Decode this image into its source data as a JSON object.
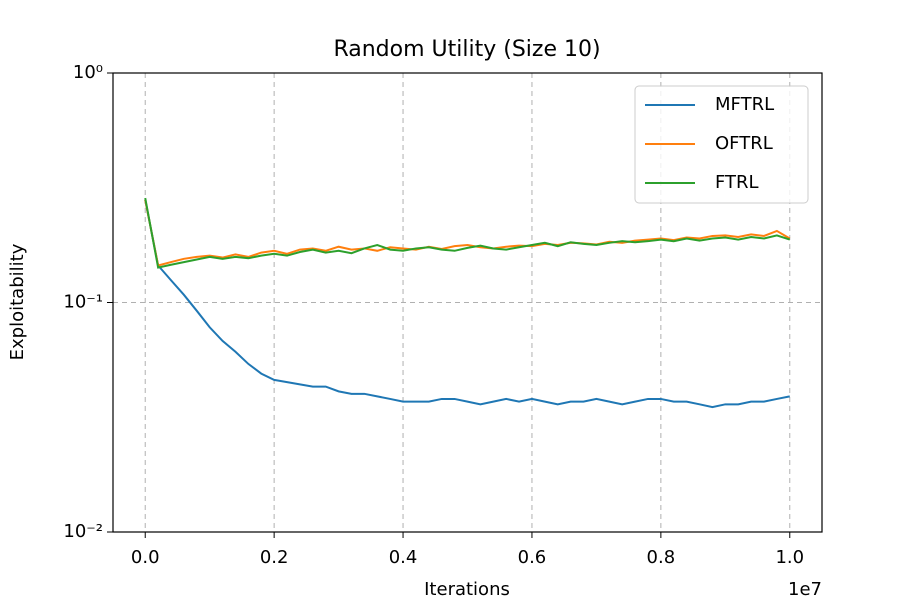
{
  "chart_data": {
    "type": "line",
    "title": "Random Utility (Size 10)",
    "x_label": "Iterations",
    "y_label": "Exploitability",
    "x_offset_label": "1e7",
    "x": [
      0,
      0.02,
      0.04,
      0.06,
      0.08,
      0.1,
      0.12,
      0.14,
      0.16,
      0.18,
      0.2,
      0.22,
      0.24,
      0.26,
      0.28,
      0.3,
      0.32,
      0.34,
      0.36,
      0.38,
      0.4,
      0.42,
      0.44,
      0.46,
      0.48,
      0.5,
      0.52,
      0.54,
      0.56,
      0.58,
      0.6,
      0.62,
      0.64,
      0.66,
      0.68,
      0.7,
      0.72,
      0.74,
      0.76,
      0.78,
      0.8,
      0.82,
      0.84,
      0.86,
      0.88,
      0.9,
      0.92,
      0.94,
      0.96,
      0.98,
      1.0
    ],
    "series": [
      {
        "name": "MFTRL",
        "color": "#1f77b4",
        "values": [
          0.28,
          0.145,
          0.125,
          0.108,
          0.092,
          0.078,
          0.068,
          0.061,
          0.054,
          0.049,
          0.046,
          0.045,
          0.044,
          0.043,
          0.043,
          0.041,
          0.04,
          0.04,
          0.039,
          0.038,
          0.037,
          0.037,
          0.037,
          0.038,
          0.038,
          0.037,
          0.036,
          0.037,
          0.038,
          0.037,
          0.038,
          0.037,
          0.036,
          0.037,
          0.037,
          0.038,
          0.037,
          0.036,
          0.037,
          0.038,
          0.038,
          0.037,
          0.037,
          0.036,
          0.035,
          0.036,
          0.036,
          0.037,
          0.037,
          0.038,
          0.039
        ]
      },
      {
        "name": "OFTRL",
        "color": "#ff7f0e",
        "values": [
          0.28,
          0.145,
          0.15,
          0.155,
          0.158,
          0.16,
          0.157,
          0.162,
          0.158,
          0.165,
          0.168,
          0.163,
          0.17,
          0.172,
          0.168,
          0.175,
          0.17,
          0.172,
          0.168,
          0.174,
          0.172,
          0.17,
          0.175,
          0.171,
          0.176,
          0.178,
          0.174,
          0.172,
          0.175,
          0.177,
          0.176,
          0.18,
          0.178,
          0.182,
          0.181,
          0.179,
          0.184,
          0.182,
          0.186,
          0.188,
          0.19,
          0.187,
          0.192,
          0.19,
          0.195,
          0.196,
          0.193,
          0.198,
          0.195,
          0.205,
          0.19
        ]
      },
      {
        "name": "FTRL",
        "color": "#2ca02c",
        "values": [
          0.285,
          0.142,
          0.146,
          0.15,
          0.154,
          0.158,
          0.155,
          0.158,
          0.156,
          0.16,
          0.163,
          0.16,
          0.166,
          0.17,
          0.165,
          0.168,
          0.164,
          0.172,
          0.178,
          0.17,
          0.168,
          0.172,
          0.174,
          0.17,
          0.168,
          0.173,
          0.177,
          0.172,
          0.17,
          0.174,
          0.178,
          0.182,
          0.176,
          0.183,
          0.18,
          0.178,
          0.182,
          0.185,
          0.183,
          0.185,
          0.188,
          0.185,
          0.19,
          0.186,
          0.19,
          0.192,
          0.188,
          0.193,
          0.19,
          0.196,
          0.188
        ]
      }
    ],
    "xlim": [
      -0.05,
      1.05
    ],
    "xticks": [
      {
        "value": 0,
        "label": "0.0"
      },
      0.2,
      0.4,
      0.6,
      0.8,
      {
        "value": 1,
        "label": "1.0"
      }
    ],
    "ylim": [
      0.01,
      1
    ],
    "y_scale": "log",
    "yticks": [
      {
        "value": 0.01,
        "label": "10⁻²"
      },
      {
        "value": 0.1,
        "label": "10⁻¹"
      },
      {
        "value": 1,
        "label": "10⁰"
      }
    ],
    "grid": true,
    "legend": "upper right"
  }
}
